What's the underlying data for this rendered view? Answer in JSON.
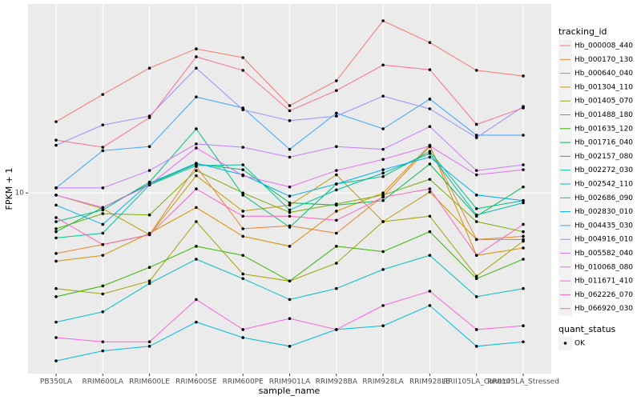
{
  "chart_data": {
    "type": "line",
    "x_label": "sample_name",
    "y_label": "FPKM + 1",
    "log_y": true,
    "grid": true,
    "legend_position": "right",
    "legend_title": "tracking_id",
    "point_legend": {
      "title": "quant_status",
      "labels": [
        "OK"
      ],
      "color": "#000000"
    },
    "categories": [
      "PB350LA",
      "RRIM600LA",
      "RRIM600LE",
      "RRIM600SE",
      "RRIM600PE",
      "RRIM901LA",
      "RRIM928BA",
      "RRIM928LA",
      "RRIM928LE",
      "RRII105LA_Control",
      "RRII105LA_Stressed"
    ],
    "ylim": [
      1.77,
      61.2
    ],
    "yticks": [
      10
    ],
    "series": [
      {
        "name": "Hb_000008_440",
        "color": "#F8766D",
        "values": [
          19.8,
          25.7,
          33.1,
          39.8,
          36.6,
          23.1,
          29.3,
          52.1,
          42.3,
          32.4,
          30.7
        ]
      },
      {
        "name": "Hb_000170_130",
        "color": "#EA8331",
        "values": [
          5.6,
          6.1,
          6.7,
          12.9,
          7.1,
          7.3,
          6.8,
          9.7,
          15.6,
          6.4,
          6.6
        ]
      },
      {
        "name": "Hb_000640_040",
        "color": "#D89000",
        "values": [
          5.2,
          5.5,
          6.8,
          8.7,
          6.6,
          6.0,
          8.4,
          10.0,
          15.8,
          5.5,
          5.9
        ]
      },
      {
        "name": "Hb_001304_110",
        "color": "#C09B00",
        "values": [
          9.8,
          8.6,
          6.7,
          11.8,
          8.4,
          8.9,
          11.9,
          7.6,
          10.1,
          6.4,
          6.4
        ]
      },
      {
        "name": "Hb_001405_070",
        "color": "#A3A500",
        "values": [
          4.0,
          3.8,
          4.3,
          7.6,
          4.6,
          4.3,
          5.1,
          7.6,
          8.0,
          4.5,
          6.3
        ]
      },
      {
        "name": "Hb_001488_180",
        "color": "#7CAE00",
        "values": [
          7.1,
          8.2,
          8.1,
          12.4,
          10.0,
          8.3,
          9.0,
          9.8,
          11.4,
          7.6,
          6.9
        ]
      },
      {
        "name": "Hb_001635_120",
        "color": "#39B600",
        "values": [
          3.7,
          4.1,
          4.9,
          6.0,
          5.5,
          4.3,
          6.0,
          5.7,
          6.9,
          4.4,
          5.3
        ]
      },
      {
        "name": "Hb_001716_040",
        "color": "#00BB4E",
        "values": [
          6.9,
          8.7,
          10.9,
          13.2,
          12.5,
          9.1,
          8.9,
          9.3,
          13.2,
          8.0,
          10.6
        ]
      },
      {
        "name": "Hb_002157_080",
        "color": "#00BF7D",
        "values": [
          7.6,
          8.5,
          11.1,
          18.5,
          9.8,
          7.2,
          10.9,
          11.7,
          14.9,
          8.6,
          9.3
        ]
      },
      {
        "name": "Hb_002272_030",
        "color": "#00C1A3",
        "values": [
          6.5,
          6.8,
          10.8,
          13.0,
          13.1,
          8.5,
          10.3,
          12.1,
          14.6,
          8.1,
          9.1
        ]
      },
      {
        "name": "Hb_002542_110",
        "color": "#00BFC4",
        "values": [
          2.9,
          3.2,
          4.2,
          5.3,
          4.4,
          3.6,
          4.0,
          4.8,
          5.5,
          3.7,
          4.0
        ]
      },
      {
        "name": "Hb_002686_090",
        "color": "#00BAE0",
        "values": [
          2.0,
          2.2,
          2.3,
          2.9,
          2.5,
          2.3,
          2.7,
          2.8,
          3.4,
          2.3,
          2.4
        ]
      },
      {
        "name": "Hb_002830_010",
        "color": "#00B0F6",
        "values": [
          8.9,
          7.4,
          11.0,
          13.3,
          11.9,
          9.7,
          10.9,
          12.5,
          14.1,
          9.8,
          9.3
        ]
      },
      {
        "name": "Hb_004435_030",
        "color": "#35A2FF",
        "values": [
          10.5,
          15.0,
          15.6,
          25.1,
          22.6,
          15.2,
          21.5,
          18.5,
          24.6,
          17.4,
          17.4
        ]
      },
      {
        "name": "Hb_004916_010",
        "color": "#9590FF",
        "values": [
          15.8,
          19.2,
          20.9,
          33.1,
          22.2,
          20.0,
          20.9,
          25.3,
          22.4,
          17.0,
          22.9
        ]
      },
      {
        "name": "Hb_005582_040",
        "color": "#C77CFF",
        "values": [
          10.5,
          10.5,
          12.4,
          16.0,
          15.5,
          14.1,
          15.6,
          15.2,
          18.9,
          12.4,
          13.1
        ]
      },
      {
        "name": "Hb_010068_080",
        "color": "#E76BF3",
        "values": [
          9.8,
          8.7,
          10.8,
          15.4,
          11.8,
          10.6,
          12.4,
          13.8,
          15.7,
          11.9,
          12.5
        ]
      },
      {
        "name": "Hb_011671_410",
        "color": "#FA62DB",
        "values": [
          2.5,
          2.4,
          2.4,
          3.6,
          2.7,
          3.0,
          2.7,
          3.4,
          3.9,
          2.7,
          2.8
        ]
      },
      {
        "name": "Hb_062226_070",
        "color": "#FF62BC",
        "values": [
          7.9,
          6.1,
          6.7,
          10.4,
          8.0,
          8.0,
          7.7,
          9.6,
          10.4,
          5.5,
          7.4
        ]
      },
      {
        "name": "Hb_066920_030",
        "color": "#FF6C91",
        "values": [
          16.6,
          15.5,
          20.6,
          36.9,
          32.4,
          22.0,
          26.7,
          34.1,
          32.6,
          19.3,
          22.6
        ]
      }
    ]
  }
}
